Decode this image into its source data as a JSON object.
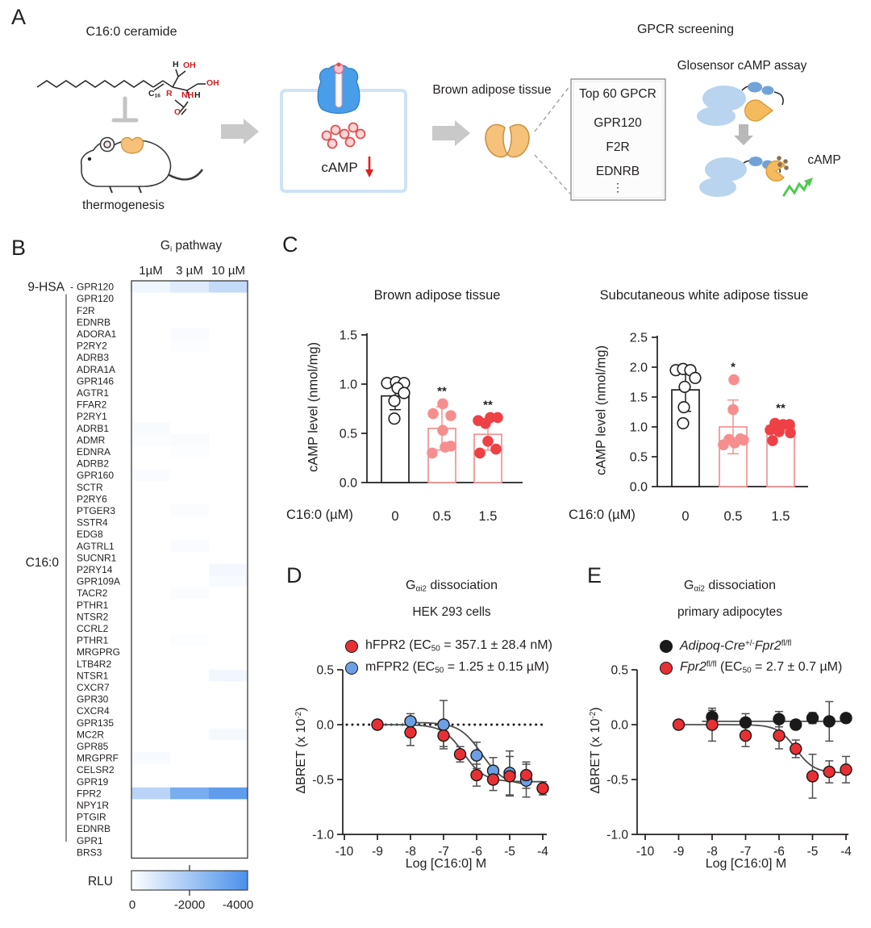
{
  "colors": {
    "heat_blue": "#4a90ea",
    "fpr2_red": "#e82525",
    "figure_red": "#e83034",
    "figure_blue": "#6ba0e4",
    "bar_outline_red": "#f29292",
    "dot_pink": "#f78e8e",
    "dot_red": "#ee4145",
    "receptor_blue": "#4a9de8",
    "tissue_orange": "#f6c178",
    "glosensor_blue": "#b9d4ee",
    "glosensor_dark_blue": "#6fa3d8",
    "glosensor_orange": "#f5b95e",
    "luminescence_green": "#4ec94e",
    "camp_brown": "#8a6f55",
    "camp_red": "#e05050",
    "arrow_gray": "#c9c9c9",
    "cell_box_blue": "#cfe3f5"
  },
  "panels": {
    "a": {
      "label": "A",
      "ceramide_title": "C16:0 ceramide",
      "thermogenesis": "thermogenesis",
      "camp_label": "cAMP",
      "brown_adipose": "Brown adipose tissue",
      "gpcr_screening": "GPCR screening",
      "glosensor": "Glosensor cAMP assay",
      "camp_label2": "cAMP",
      "gpcr_box": {
        "title": "Top 60 GPCR",
        "items": [
          "GPR120",
          "F2R",
          "EDNRB"
        ],
        "ellipsis": "⋮"
      },
      "chem": {
        "h1": "H",
        "oh1": "OH",
        "oh2": "OH",
        "r": "R",
        "nh": "NH",
        "h2": "H",
        "o": "O",
        "c16_parts": [
          {
            "t": "C"
          },
          {
            "t": "16",
            "sub": 1
          }
        ]
      }
    },
    "b": {
      "label": "B"
    },
    "c": {
      "label": "C"
    },
    "d": {
      "label": "D"
    },
    "e": {
      "label": "E"
    }
  },
  "chart_data": [
    {
      "id": "gpcr-heatmap",
      "type": "heatmap",
      "title_parts": [
        {
          "t": "G"
        },
        {
          "t": "i",
          "sub": 1
        },
        {
          "t": " pathway"
        }
      ],
      "col_headers": [
        "1µM",
        "3 µM",
        "10 µM"
      ],
      "group_first": "9-HSA",
      "group_rest": "C16:0",
      "value_unit": "RLU",
      "rows": [
        {
          "g": "GPR120",
          "v": [
            -330,
            -710,
            -1330
          ]
        },
        {
          "g": "GPR120",
          "v": [
            0,
            0,
            0
          ]
        },
        {
          "g": "F2R",
          "v": [
            0,
            0,
            0
          ]
        },
        {
          "g": "EDNRB",
          "v": [
            0,
            0,
            0
          ]
        },
        {
          "g": "ADORA1",
          "v": [
            0,
            -140,
            0
          ]
        },
        {
          "g": "P2RY2",
          "v": [
            0,
            -90,
            0
          ]
        },
        {
          "g": "ADRB3",
          "v": [
            0,
            0,
            0
          ]
        },
        {
          "g": "ADRA1A",
          "v": [
            0,
            0,
            0
          ]
        },
        {
          "g": "GPR146",
          "v": [
            0,
            0,
            0
          ]
        },
        {
          "g": "AGTR1",
          "v": [
            0,
            0,
            0
          ]
        },
        {
          "g": "FFAR2",
          "v": [
            0,
            0,
            0
          ]
        },
        {
          "g": "P2RY1",
          "v": [
            0,
            0,
            0
          ]
        },
        {
          "g": "ADRB1",
          "v": [
            -160,
            0,
            0
          ]
        },
        {
          "g": "ADMR",
          "v": [
            -110,
            -130,
            0
          ]
        },
        {
          "g": "EDNRA",
          "v": [
            0,
            -90,
            0
          ]
        },
        {
          "g": "ADRB2",
          "v": [
            0,
            0,
            0
          ]
        },
        {
          "g": "GPR160",
          "v": [
            -130,
            0,
            0
          ]
        },
        {
          "g": "SCTR",
          "v": [
            0,
            0,
            0
          ]
        },
        {
          "g": "P2RY6",
          "v": [
            0,
            0,
            0
          ]
        },
        {
          "g": "PTGER3",
          "v": [
            0,
            -100,
            0
          ]
        },
        {
          "g": "SSTR4",
          "v": [
            0,
            0,
            0
          ]
        },
        {
          "g": "EDG8",
          "v": [
            0,
            0,
            0
          ]
        },
        {
          "g": "AGTRL1",
          "v": [
            0,
            -130,
            0
          ]
        },
        {
          "g": "SUCNR1",
          "v": [
            0,
            0,
            0
          ]
        },
        {
          "g": "P2RY14",
          "v": [
            0,
            0,
            -240
          ]
        },
        {
          "g": "GPR109A",
          "v": [
            0,
            0,
            -180
          ]
        },
        {
          "g": "TACR2",
          "v": [
            0,
            -110,
            0
          ]
        },
        {
          "g": "PTHR1",
          "v": [
            0,
            0,
            0
          ]
        },
        {
          "g": "NTSR2",
          "v": [
            0,
            0,
            0
          ]
        },
        {
          "g": "CCRL2",
          "v": [
            0,
            0,
            0
          ]
        },
        {
          "g": "PTHR1",
          "v": [
            0,
            -90,
            0
          ]
        },
        {
          "g": "MRGPRG",
          "v": [
            0,
            0,
            0
          ]
        },
        {
          "g": "LTB4R2",
          "v": [
            0,
            0,
            0
          ]
        },
        {
          "g": "NTSR1",
          "v": [
            0,
            0,
            -280
          ]
        },
        {
          "g": "CXCR7",
          "v": [
            0,
            0,
            0
          ]
        },
        {
          "g": "GPR30",
          "v": [
            0,
            0,
            0
          ]
        },
        {
          "g": "CXCR4",
          "v": [
            0,
            0,
            0
          ]
        },
        {
          "g": "GPR135",
          "v": [
            0,
            0,
            0
          ]
        },
        {
          "g": "MC2R",
          "v": [
            0,
            0,
            -230
          ]
        },
        {
          "g": "GPR85",
          "v": [
            0,
            0,
            0
          ]
        },
        {
          "g": "MRGPRF",
          "v": [
            -180,
            0,
            0
          ]
        },
        {
          "g": "CELSR2",
          "v": [
            0,
            0,
            0
          ]
        },
        {
          "g": "GPR19",
          "v": [
            0,
            0,
            0
          ]
        },
        {
          "g": "FPR2",
          "v": [
            -1550,
            -2960,
            -3540
          ],
          "hl": 1
        },
        {
          "g": "NPY1R",
          "v": [
            0,
            0,
            0
          ]
        },
        {
          "g": "PTGIR",
          "v": [
            0,
            0,
            0
          ]
        },
        {
          "g": "EDNRB",
          "v": [
            0,
            0,
            0
          ]
        },
        {
          "g": "GPR1",
          "v": [
            0,
            0,
            0
          ]
        },
        {
          "g": "BRS3",
          "v": [
            0,
            0,
            0
          ]
        }
      ],
      "colorbar": {
        "label": "RLU",
        "ticks": [
          "0",
          "-2000",
          "-4000"
        ],
        "min": 0,
        "max": -4000
      }
    },
    {
      "id": "bat-bars",
      "type": "bar",
      "title": "Brown adipose tissue",
      "ylabel": "cAMP level (nmol/mg)",
      "xlabel_prefix": "C16:0 (µM)",
      "categories": [
        "0",
        "0.5",
        "1.5"
      ],
      "yticks": [
        0,
        0.5,
        1.0,
        1.5
      ],
      "ytick_labels": [
        "0.0",
        "0.5",
        "1.0",
        "1.5"
      ],
      "ylim": [
        0,
        1.5
      ],
      "bars": [
        {
          "mean": 0.88,
          "sd": 0.14,
          "outline": "#231f20",
          "marker": "open",
          "sig": "",
          "points": [
            [
              -10,
              1.01
            ],
            [
              1,
              1.02
            ],
            [
              11,
              1.01
            ],
            [
              3,
              0.96
            ],
            [
              11,
              0.91
            ],
            [
              -1,
              0.83
            ],
            [
              -1,
              0.65
            ]
          ]
        },
        {
          "mean": 0.55,
          "sd": 0.22,
          "outline": "#f29292",
          "marker": "#f78e8e",
          "sig": "**",
          "points": [
            [
              -11,
              0.7
            ],
            [
              1,
              0.8
            ],
            [
              11,
              0.68
            ],
            [
              1,
              0.53
            ],
            [
              -12,
              0.3
            ],
            [
              4,
              0.36
            ],
            [
              11,
              0.37
            ]
          ]
        },
        {
          "mean": 0.49,
          "sd": 0.16,
          "outline": "#f29292",
          "marker": "#ee4145",
          "sig": "**",
          "points": [
            [
              -12,
              0.63
            ],
            [
              -3,
              0.6
            ],
            [
              3,
              0.66
            ],
            [
              12,
              0.66
            ],
            [
              -10,
              0.3
            ],
            [
              0,
              0.42
            ],
            [
              10,
              0.34
            ]
          ]
        }
      ]
    },
    {
      "id": "swat-bars",
      "type": "bar",
      "title": "Subcutaneous white adipose tissue",
      "ylabel": "cAMP level (nmol/mg)",
      "xlabel_prefix": "C16:0 (µM)",
      "categories": [
        "0",
        "0.5",
        "1.5"
      ],
      "yticks": [
        0,
        0.5,
        1.0,
        1.5,
        2.0,
        2.5
      ],
      "ytick_labels": [
        "0.0",
        "0.5",
        "1.0",
        "1.5",
        "2.0",
        "2.5"
      ],
      "ylim": [
        0,
        2.5
      ],
      "bars": [
        {
          "mean": 1.62,
          "sd": 0.36,
          "outline": "#231f20",
          "marker": "open",
          "sig": "",
          "points": [
            [
              -12,
              1.95
            ],
            [
              -3,
              1.97
            ],
            [
              6,
              1.95
            ],
            [
              12,
              1.82
            ],
            [
              -1,
              1.67
            ],
            [
              -2,
              1.33
            ],
            [
              -3,
              1.06
            ]
          ]
        },
        {
          "mean": 1.0,
          "sd": 0.45,
          "outline": "#f29292",
          "marker": "#f78e8e",
          "sig": "*",
          "points": [
            [
              1,
              1.79
            ],
            [
              0,
              1.29
            ],
            [
              -12,
              0.7
            ],
            [
              -5,
              0.79
            ],
            [
              2,
              0.73
            ],
            [
              9,
              0.8
            ],
            [
              13,
              0.78
            ]
          ]
        },
        {
          "mean": 1.02,
          "sd": 0.08,
          "outline": "#f29292",
          "marker": "#ee4145",
          "sig": "**",
          "points": [
            [
              -7,
              1.06
            ],
            [
              -13,
              0.95
            ],
            [
              -10,
              0.77
            ],
            [
              -2,
              0.92
            ],
            [
              3,
              1.04
            ],
            [
              11,
              1.04
            ],
            [
              12,
              0.9
            ]
          ]
        }
      ]
    },
    {
      "id": "hek-dose",
      "type": "line",
      "title_parts": [
        {
          "t": "G"
        },
        {
          "t": "αi2",
          "sub": 1
        },
        {
          "t": " dissociation"
        }
      ],
      "subtitle": "HEK 293 cells",
      "ylabel_parts": [
        {
          "t": "ΔBRET (x 10"
        },
        {
          "t": "-2",
          "sup": 1
        },
        {
          "t": ")"
        }
      ],
      "xlabel": "Log [C16:0] M",
      "xticks": [
        -10,
        -9,
        -8,
        -7,
        -6,
        -5,
        -4
      ],
      "xtick_labels": [
        "-10",
        "-9",
        "-8",
        "-7",
        "-6",
        "-5",
        "-4"
      ],
      "yticks": [
        0.5,
        0.0,
        -0.5,
        -1.0
      ],
      "ytick_labels": [
        "0.5",
        "0.0",
        "-0.5",
        "-1.0"
      ],
      "zero_line": true,
      "legend": [
        {
          "color": "#e83034",
          "parts": [
            {
              "t": "hFPR2 (EC"
            },
            {
              "t": "50",
              "sub": 1
            },
            {
              "t": " = 357.1 ± 28.4 nM)"
            }
          ]
        },
        {
          "color": "#6ba0e4",
          "parts": [
            {
              "t": "mFPR2 (EC"
            },
            {
              "t": "50",
              "sub": 1
            },
            {
              "t": " = 1.25 ± 0.15 µM)"
            }
          ]
        }
      ],
      "series": [
        {
          "name": "mFPR2",
          "color": "#6ba0e4",
          "x": [
            -8,
            -7,
            -6,
            -5.5,
            -5,
            -4.5
          ],
          "y": [
            0.03,
            0.0,
            -0.28,
            -0.42,
            -0.44,
            -0.51
          ],
          "err": [
            0.07,
            0.22,
            0.12,
            0.12,
            0.2,
            0.15
          ],
          "fit": {
            "top": 0.02,
            "bottom": -0.55,
            "logec50": -5.85,
            "hill": 1.3,
            "range": [
              -8,
              -4.35
            ]
          }
        },
        {
          "name": "hFPR2",
          "color": "#e83034",
          "x": [
            -9,
            -8,
            -7,
            -6.5,
            -6,
            -5.5,
            -5,
            -4.5,
            -4
          ],
          "y": [
            0.0,
            -0.07,
            -0.1,
            -0.27,
            -0.46,
            -0.5,
            -0.47,
            -0.46,
            -0.58
          ],
          "err": [
            0.03,
            0.12,
            0.1,
            0.07,
            0.1,
            0.1,
            0.18,
            0.12,
            0.06
          ],
          "fit": {
            "top": 0.0,
            "bottom": -0.52,
            "logec50": -6.4,
            "hill": 1.4,
            "range": [
              -9,
              -4
            ]
          }
        }
      ]
    },
    {
      "id": "adipocyte-dose",
      "type": "line",
      "title_parts": [
        {
          "t": "G"
        },
        {
          "t": "αi2",
          "sub": 1
        },
        {
          "t": " dissociation"
        }
      ],
      "subtitle": "primary adipocytes",
      "ylabel_parts": [
        {
          "t": "ΔBRET (x 10"
        },
        {
          "t": "-2",
          "sup": 1
        },
        {
          "t": ")"
        }
      ],
      "xlabel": "Log [C16:0] M",
      "xticks": [
        -10,
        -9,
        -8,
        -7,
        -6,
        -5,
        -4
      ],
      "xtick_labels": [
        "-10",
        "-9",
        "-8",
        "-7",
        "-6",
        "-5",
        "-4"
      ],
      "yticks": [
        0.5,
        0.0,
        -0.5,
        -1.0
      ],
      "ytick_labels": [
        "0.5",
        "0.0",
        "-0.5",
        "-1.0"
      ],
      "zero_line": false,
      "legend": [
        {
          "color": "#1a1a1a",
          "parts": [
            {
              "t": "Adipoq-Cre",
              "i": 1
            },
            {
              "t": "+/-",
              "sup": 1
            },
            {
              "t": "Fpr2",
              "i": 1
            },
            {
              "t": "fl/fl",
              "sup": 1
            }
          ]
        },
        {
          "color": "#e83034",
          "parts": [
            {
              "t": "Fpr2",
              "i": 1
            },
            {
              "t": "fl/fl",
              "sup": 1
            },
            {
              "t": " (EC"
            },
            {
              "t": "50",
              "sub": 1
            },
            {
              "t": " = 2.7 ± 0.7 µM)"
            }
          ]
        }
      ],
      "series": [
        {
          "name": "Adipoq-Cre+/- Fpr2fl/fl",
          "color": "#1a1a1a",
          "x": [
            -8,
            -7,
            -6,
            -5.5,
            -5,
            -4.5,
            -4
          ],
          "y": [
            0.07,
            0.02,
            0.05,
            0.0,
            0.06,
            0.03,
            0.06
          ],
          "err": [
            0.06,
            0.08,
            0.07,
            0.04,
            0.05,
            0.18,
            0.04
          ],
          "fit": {
            "top": 0.03,
            "bottom": 0.03,
            "logec50": -5,
            "hill": 1,
            "range": [
              -8.3,
              -4
            ]
          }
        },
        {
          "name": "Fpr2fl/fl",
          "color": "#e83034",
          "x": [
            -9,
            -8,
            -7,
            -6,
            -5.5,
            -5,
            -4.5,
            -4
          ],
          "y": [
            0.0,
            0.0,
            -0.1,
            -0.1,
            -0.22,
            -0.47,
            -0.43,
            -0.41
          ],
          "err": [
            0.02,
            0.15,
            0.1,
            0.12,
            0.08,
            0.2,
            0.1,
            0.12
          ],
          "fit": {
            "top": 0.0,
            "bottom": -0.44,
            "logec50": -5.5,
            "hill": 1.6,
            "range": [
              -9,
              -4
            ]
          }
        }
      ]
    }
  ]
}
